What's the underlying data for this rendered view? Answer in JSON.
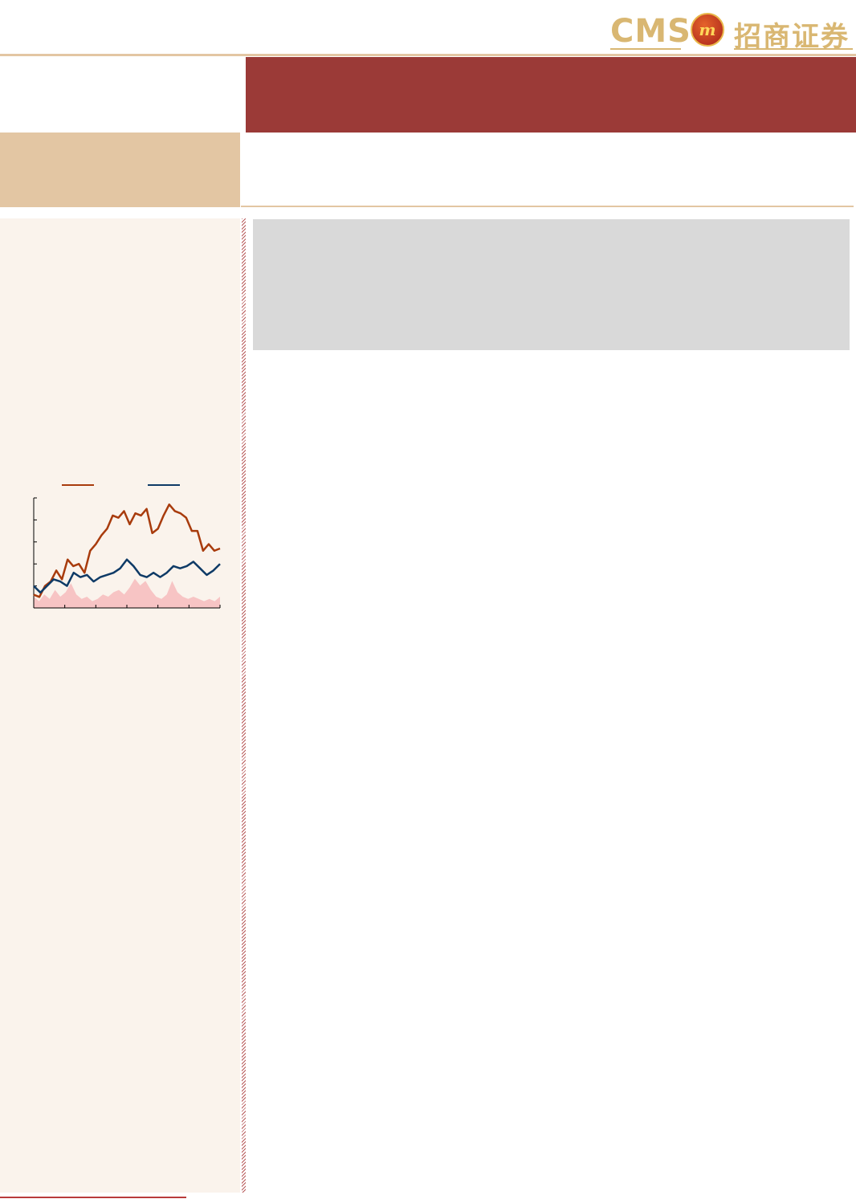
{
  "header": {
    "logo_text_en": "CMS",
    "logo_text_cn": "招商证券",
    "logo_emblem": "m"
  },
  "colors": {
    "brand_red": "#9b3a37",
    "tan": "#e3c6a3",
    "gold": "#d9b772",
    "sidebar_bg": "#faf3ec",
    "gray_box": "#d9d9d9",
    "series_orange": "#a83b0c",
    "series_blue": "#0e3a66",
    "volume_pink": "#f7c4c4"
  },
  "chart_data": {
    "type": "line",
    "ylim": [
      0,
      5
    ],
    "legend_placement": "top",
    "grid": false,
    "series": [
      {
        "color": "#a83b0c",
        "values": [
          0.6,
          0.5,
          1.0,
          1.2,
          1.7,
          1.3,
          2.2,
          1.9,
          2.0,
          1.6,
          2.6,
          2.9,
          3.3,
          3.6,
          4.2,
          4.1,
          4.4,
          3.8,
          4.3,
          4.2,
          4.5,
          3.4,
          3.6,
          4.2,
          4.7,
          4.4,
          4.3,
          4.1,
          3.5,
          3.5,
          2.6,
          2.9,
          2.6,
          2.7
        ]
      },
      {
        "color": "#0e3a66",
        "values": [
          1.0,
          0.7,
          1.0,
          1.3,
          1.2,
          1.0,
          1.6,
          1.4,
          1.5,
          1.2,
          1.4,
          1.5,
          1.6,
          1.8,
          2.2,
          1.9,
          1.5,
          1.4,
          1.6,
          1.4,
          1.6,
          1.9,
          1.8,
          1.9,
          2.1,
          1.8,
          1.5,
          1.7,
          2.0
        ]
      }
    ],
    "volume": {
      "color": "#f7c4c4",
      "values": [
        0.5,
        0.3,
        0.6,
        0.4,
        0.8,
        0.5,
        0.7,
        1.1,
        0.6,
        0.4,
        0.5,
        0.3,
        0.4,
        0.6,
        0.5,
        0.7,
        0.8,
        0.6,
        0.9,
        1.3,
        1.0,
        1.2,
        0.8,
        0.5,
        0.4,
        0.6,
        1.2,
        0.7,
        0.5,
        0.4,
        0.5,
        0.4,
        0.3,
        0.4,
        0.3,
        0.5
      ]
    }
  }
}
